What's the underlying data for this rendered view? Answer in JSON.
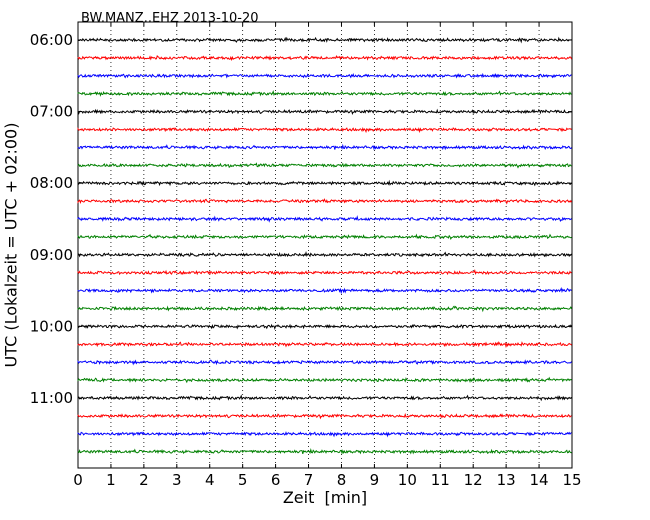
{
  "chart_data": {
    "type": "line",
    "title": "BW.MANZ..EHZ 2013-10-20",
    "xlabel": "Zeit  [min]",
    "ylabel": "UTC (Lokalzeit = UTC + 02:00)",
    "xlim": [
      0,
      15
    ],
    "x_ticks": [
      "0",
      "1",
      "2",
      "3",
      "4",
      "5",
      "6",
      "7",
      "8",
      "9",
      "10",
      "11",
      "12",
      "13",
      "14",
      "15"
    ],
    "y_ticks": [
      "06:00",
      "07:00",
      "08:00",
      "09:00",
      "10:00",
      "11:00"
    ],
    "grid": "vertical-dotted",
    "trace_interval_min": 15,
    "trace_colors": [
      "#000000",
      "#ff0000",
      "#0000ff",
      "#008000"
    ],
    "series": [
      {
        "start": "06:00"
      },
      {
        "start": "06:15"
      },
      {
        "start": "06:30"
      },
      {
        "start": "06:45"
      },
      {
        "start": "07:00"
      },
      {
        "start": "07:15"
      },
      {
        "start": "07:30"
      },
      {
        "start": "07:45"
      },
      {
        "start": "08:00"
      },
      {
        "start": "08:15"
      },
      {
        "start": "08:30"
      },
      {
        "start": "08:45"
      },
      {
        "start": "09:00"
      },
      {
        "start": "09:15"
      },
      {
        "start": "09:30"
      },
      {
        "start": "09:45"
      },
      {
        "start": "10:00"
      },
      {
        "start": "10:15"
      },
      {
        "start": "10:30"
      },
      {
        "start": "10:45"
      },
      {
        "start": "11:00"
      },
      {
        "start": "11:15"
      },
      {
        "start": "11:30"
      },
      {
        "start": "11:45"
      }
    ]
  }
}
